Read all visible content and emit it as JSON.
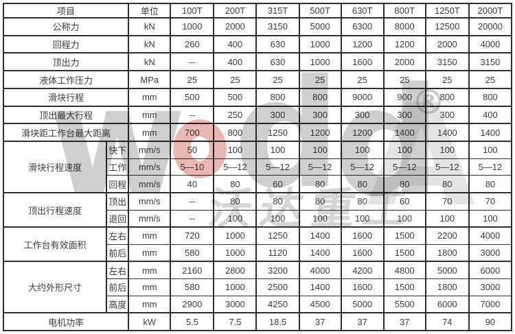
{
  "page": {
    "background": "#ffffff",
    "border_color": "#2d2d2d",
    "text_color": "#3c3c3c"
  },
  "watermark": {
    "letters": {
      "w": "w",
      "d1": "d",
      "d2": "d",
      "a": "A"
    },
    "o_ring_color": "#c6443a",
    "gray": "#787878",
    "registered_mark": "®",
    "brand_cn": "沃达重工"
  },
  "table": {
    "header": {
      "item": "项目",
      "unit": "单位",
      "models": [
        "100T",
        "200T",
        "315T",
        "500T",
        "630T",
        "800T",
        "1250T",
        "2000T"
      ]
    },
    "rows": [
      {
        "label": "公称力",
        "unit": "kN",
        "values": [
          "1000",
          "2000",
          "3150",
          "5000",
          "6300",
          "8000",
          "12500",
          "20000"
        ]
      },
      {
        "label": "回程力",
        "unit": "kN",
        "values": [
          "260",
          "400",
          "630",
          "1000",
          "1200",
          "1200",
          "2000",
          "4000"
        ]
      },
      {
        "label": "顶出力",
        "unit": "kN",
        "values": [
          "--",
          "400",
          "630",
          "1000",
          "1600",
          "2000",
          "3150",
          "3150"
        ]
      },
      {
        "label": "液体工作压力",
        "unit": "MPa",
        "values": [
          "25",
          "25",
          "25",
          "25",
          "25",
          "25",
          "25",
          "25"
        ]
      },
      {
        "label": "滑块行程",
        "unit": "mm",
        "values": [
          "500",
          "500",
          "800",
          "800",
          "9000",
          "900",
          "800",
          "800"
        ]
      },
      {
        "label": "顶出最大行程",
        "unit": "mm",
        "values": [
          "--",
          "250",
          "300",
          "300",
          "300",
          "300",
          "300",
          "400"
        ]
      },
      {
        "label": "滑块距工作台最大距离",
        "unit": "mm",
        "values": [
          "700",
          "800",
          "1250",
          "1200",
          "1200",
          "1400",
          "1400",
          "1400"
        ]
      },
      {
        "label": "滑块行程速度",
        "subrows": [
          {
            "sub": "快下",
            "unit": "mm/s",
            "values": [
              "50",
              "100",
              "100",
              "100",
              "100",
              "100",
              "100",
              "100"
            ]
          },
          {
            "sub": "工作",
            "unit": "mm/s",
            "values": [
              "5—10",
              "5—12",
              "5—12",
              "5—12",
              "5—12",
              "5—12",
              "5—12",
              "5—12"
            ]
          },
          {
            "sub": "回程",
            "unit": "mm/s",
            "values": [
              "40",
              "80",
              "60",
              "80",
              "80",
              "80",
              "80",
              "80"
            ]
          }
        ]
      },
      {
        "label": "顶出行程速度",
        "subrows": [
          {
            "sub": "顶出",
            "unit": "mm/s",
            "values": [
              "--",
              "80",
              "80",
              "80",
              "80",
              "60",
              "70",
              "70"
            ]
          },
          {
            "sub": "退回",
            "unit": "mm/s",
            "values": [
              "--",
              "100",
              "100",
              "100",
              "100",
              "100",
              "100",
              "100"
            ]
          }
        ]
      },
      {
        "label": "工作台有效面积",
        "subrows": [
          {
            "sub": "左右",
            "unit": "mm",
            "values": [
              "720",
              "1000",
              "1250",
              "1400",
              "1600",
              "1500",
              "2200",
              "4000"
            ]
          },
          {
            "sub": "前后",
            "unit": "mm",
            "values": [
              "580",
              "1000",
              "1120",
              "1400",
              "1600",
              "1500",
              "1800",
              "3000"
            ]
          }
        ]
      },
      {
        "label": "大约外形尺寸",
        "subrows": [
          {
            "sub": "左右",
            "unit": "mm",
            "values": [
              "2160",
              "2800",
              "3200",
              "4000",
              "4200",
              "4800",
              "5000",
              "6000"
            ]
          },
          {
            "sub": "前后",
            "unit": "mm",
            "values": [
              "580",
              "1000",
              "2500",
              "1400",
              "1600",
              "1500",
              "1800",
              "3000"
            ]
          },
          {
            "sub": "高度",
            "unit": "mm",
            "values": [
              "2900",
              "3000",
              "4250",
              "4500",
              "5000",
              "5500",
              "6000",
              "7000"
            ]
          }
        ]
      },
      {
        "label": "电机功率",
        "unit": "kW",
        "values": [
          "5.5",
          "7.5",
          "18.5",
          "37",
          "37",
          "37",
          "74",
          "90"
        ]
      }
    ]
  }
}
